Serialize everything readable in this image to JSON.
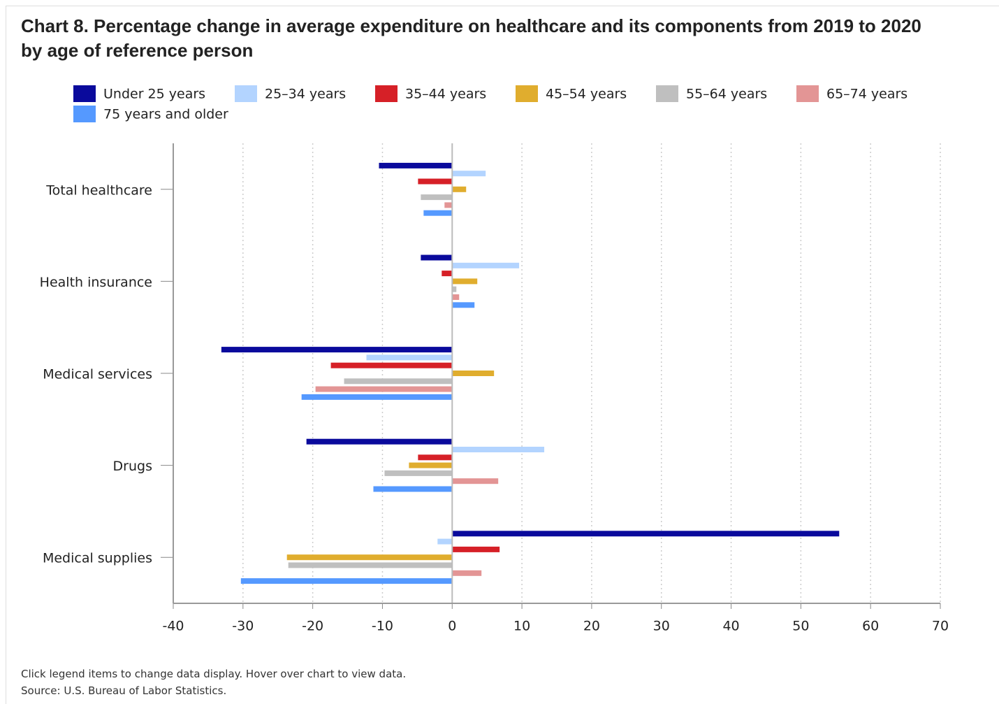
{
  "chart_data": {
    "type": "hbar",
    "title": "Chart 8. Percentage change in average expenditure on healthcare and its components from 2019 to 2020 by age of reference person",
    "categories": [
      "Total healthcare",
      "Health insurance",
      "Medical services",
      "Drugs",
      "Medical supplies"
    ],
    "series": [
      {
        "name": "Under 25 years",
        "color": "#0a0a9c",
        "values": [
          -10.5,
          -4.5,
          -33.1,
          -20.9,
          55.5
        ]
      },
      {
        "name": "25–34 years",
        "color": "#b3d4ff",
        "values": [
          4.8,
          9.6,
          -12.3,
          13.2,
          -2.1
        ]
      },
      {
        "name": "35–44 years",
        "color": "#d62027",
        "values": [
          -4.9,
          -1.5,
          -17.4,
          -4.9,
          6.8
        ]
      },
      {
        "name": "45–54 years",
        "color": "#e0ad2e",
        "values": [
          2.0,
          3.6,
          6.0,
          -6.2,
          -23.7
        ]
      },
      {
        "name": "55–64 years",
        "color": "#bfbfbf",
        "values": [
          -4.5,
          0.6,
          -15.5,
          -9.7,
          -23.5
        ]
      },
      {
        "name": "65–74 years",
        "color": "#e39595",
        "values": [
          -1.1,
          1.0,
          -19.6,
          6.6,
          4.2
        ]
      },
      {
        "name": "75 years and older",
        "color": "#5599ff",
        "values": [
          -4.1,
          3.2,
          -21.6,
          -11.3,
          -30.3
        ]
      }
    ],
    "xlim": [
      -40,
      70
    ],
    "xticks": [
      -40,
      -30,
      -20,
      -10,
      0,
      10,
      20,
      30,
      40,
      50,
      60,
      70
    ],
    "grid": true,
    "note": "Click legend items to change data display. Hover over chart to view data.",
    "source": "Source: U.S. Bureau of Labor Statistics."
  }
}
